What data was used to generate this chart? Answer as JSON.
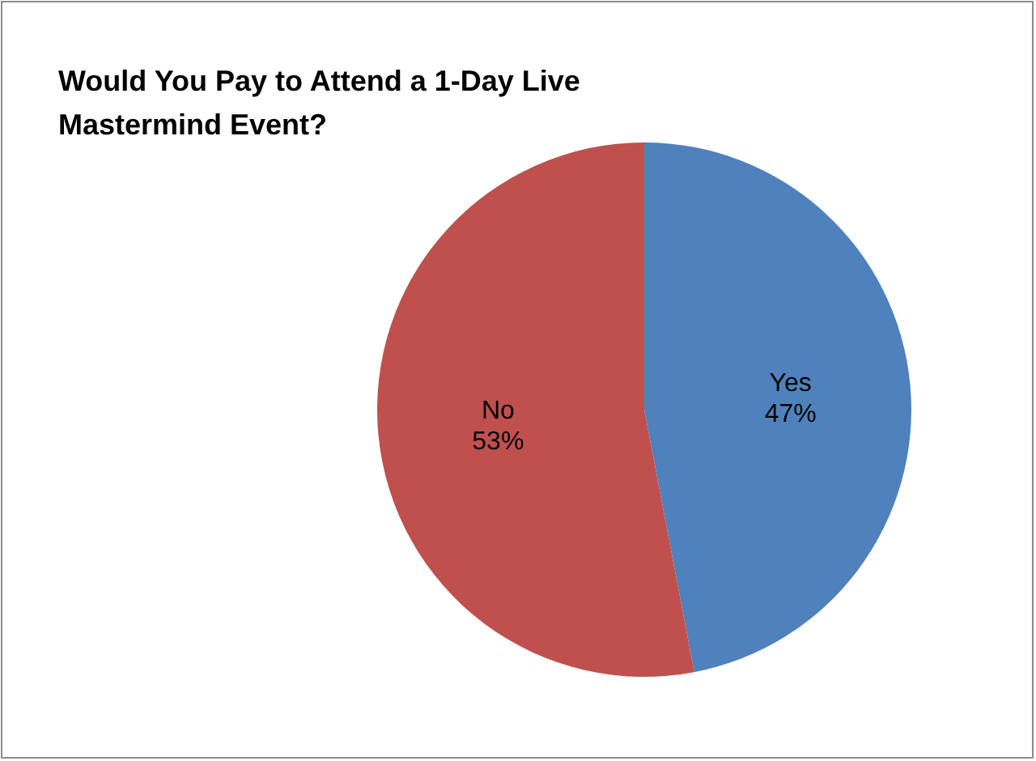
{
  "chart_data": {
    "type": "pie",
    "title": "Would You Pay to Attend a 1-Day Live Mastermind Event?",
    "categories": [
      "Yes",
      "No"
    ],
    "values": [
      47,
      53
    ],
    "colors": [
      "#4f81bd",
      "#c0504d"
    ],
    "value_labels": [
      "47%",
      "53%"
    ]
  }
}
